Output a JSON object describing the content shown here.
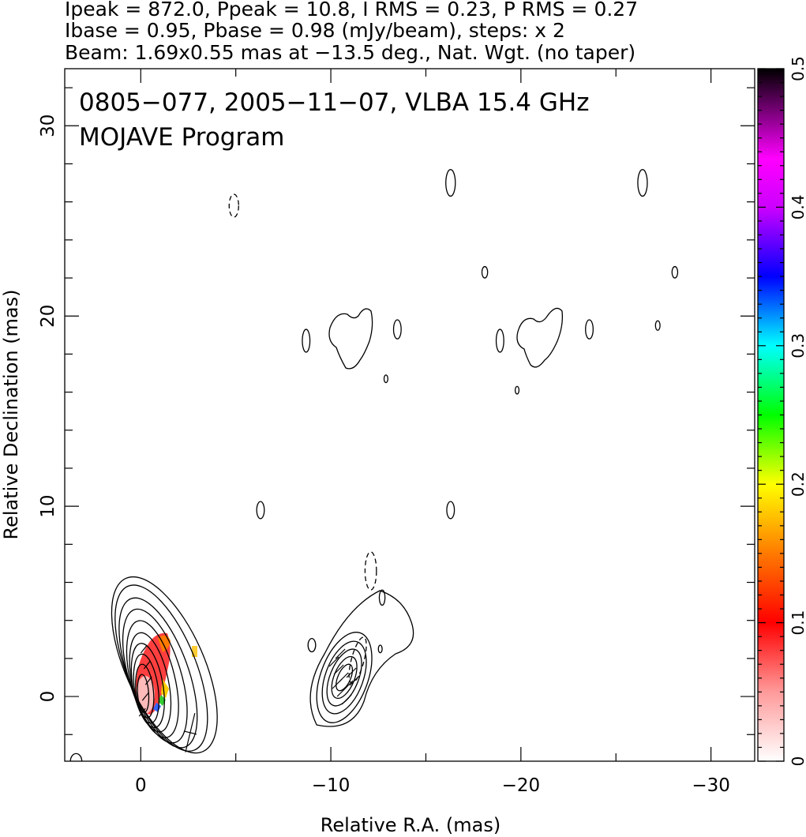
{
  "header": {
    "line1": "Ipeak = 872.0, Ppeak = 10.8, I RMS = 0.23, P RMS = 0.27",
    "line2": "Ibase = 0.95, Pbase = 0.98 (mJy/beam), steps: x 2",
    "line3": "Beam: 1.69x0.55 mas at −13.5 deg., Nat. Wgt. (no taper)"
  },
  "chart_data": {
    "type": "heatmap",
    "title": "",
    "annotation_line1": "0805−077, 2005−11−07, VLBA 15.4 GHz",
    "annotation_line2": "MOJAVE Program",
    "xlabel": "Relative R.A. (mas)",
    "ylabel": "Relative Declination (mas)",
    "xlim": [
      4.0,
      -32.3
    ],
    "ylim": [
      -3.4,
      33.0
    ],
    "x_ticks": [
      0,
      -10,
      -20,
      -30
    ],
    "x_tick_labels": [
      "0",
      "−10",
      "−20",
      "−30"
    ],
    "y_ticks": [
      0,
      10,
      20,
      30
    ],
    "y_tick_labels": [
      "0",
      "10",
      "20",
      "30"
    ],
    "colorbar": {
      "range": [
        0,
        0.5
      ],
      "ticks": [
        0,
        0.1,
        0.2,
        0.3,
        0.4,
        0.5
      ],
      "tick_labels": [
        "0",
        "0.1",
        "0.2",
        "0.3",
        "0.4",
        "0.5"
      ],
      "colors": [
        "#ffffff",
        "#ff0000",
        "#ffff00",
        "#00ff00",
        "#00ffff",
        "#0000ff",
        "#ff00ff",
        "#000000"
      ]
    },
    "core": {
      "x": 0.0,
      "y": 0.0
    },
    "jet_knot": {
      "x": -10.5,
      "y": 1.0
    },
    "beam": {
      "major_mas": 1.69,
      "minor_mas": 0.55,
      "pa_deg": -13.5,
      "x": -2.6,
      "y": -1.9
    },
    "isolated_contours": [
      {
        "x": -16.3,
        "y": 27.0,
        "rx": 0.25,
        "ry": 0.7,
        "dashed": false
      },
      {
        "x": -26.4,
        "y": 27.0,
        "rx": 0.25,
        "ry": 0.7,
        "dashed": false
      },
      {
        "x": -4.9,
        "y": 25.8,
        "rx": 0.25,
        "ry": 0.6,
        "dashed": true
      },
      {
        "x": -18.1,
        "y": 22.3,
        "rx": 0.15,
        "ry": 0.3,
        "dashed": false
      },
      {
        "x": -28.1,
        "y": 22.3,
        "rx": 0.15,
        "ry": 0.3,
        "dashed": false
      },
      {
        "x": -8.7,
        "y": 18.7,
        "rx": 0.2,
        "ry": 0.6,
        "dashed": false
      },
      {
        "x": -13.5,
        "y": 19.3,
        "rx": 0.2,
        "ry": 0.5,
        "dashed": false
      },
      {
        "x": -18.9,
        "y": 18.7,
        "rx": 0.2,
        "ry": 0.6,
        "dashed": false
      },
      {
        "x": -23.6,
        "y": 19.3,
        "rx": 0.2,
        "ry": 0.5,
        "dashed": false
      },
      {
        "x": -27.2,
        "y": 19.5,
        "rx": 0.12,
        "ry": 0.25,
        "dashed": false
      },
      {
        "x": -12.9,
        "y": 16.7,
        "rx": 0.1,
        "ry": 0.2,
        "dashed": false
      },
      {
        "x": -19.8,
        "y": 16.1,
        "rx": 0.1,
        "ry": 0.2,
        "dashed": false
      },
      {
        "x": -6.3,
        "y": 9.8,
        "rx": 0.2,
        "ry": 0.45,
        "dashed": false
      },
      {
        "x": -16.3,
        "y": 9.8,
        "rx": 0.2,
        "ry": 0.45,
        "dashed": false
      },
      {
        "x": -12.1,
        "y": 6.6,
        "rx": 0.3,
        "ry": 1.0,
        "dashed": true
      },
      {
        "x": -12.7,
        "y": 5.2,
        "rx": 0.15,
        "ry": 0.4,
        "dashed": false
      },
      {
        "x": -9.0,
        "y": 2.7,
        "rx": 0.2,
        "ry": 0.35,
        "dashed": false
      },
      {
        "x": -12.6,
        "y": 2.5,
        "rx": 0.1,
        "ry": 0.2,
        "dashed": false
      },
      {
        "x": 3.4,
        "y": -3.4,
        "rx": 0.3,
        "ry": 0.4,
        "dashed": false
      }
    ],
    "polarization_pixels_note": "color = fractional polarization"
  }
}
